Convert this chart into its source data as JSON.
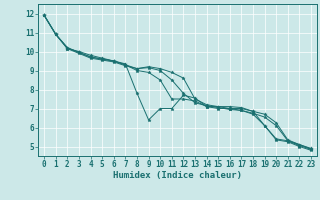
{
  "xlabel": "Humidex (Indice chaleur)",
  "bg_color": "#cce8e8",
  "grid_color": "#ffffff",
  "line_color": "#1a7070",
  "xlim": [
    -0.5,
    23.5
  ],
  "ylim": [
    4.5,
    12.5
  ],
  "yticks": [
    5,
    6,
    7,
    8,
    9,
    10,
    11,
    12
  ],
  "xticks": [
    0,
    1,
    2,
    3,
    4,
    5,
    6,
    7,
    8,
    9,
    10,
    11,
    12,
    13,
    14,
    15,
    16,
    17,
    18,
    19,
    20,
    21,
    22,
    23
  ],
  "series": [
    [
      11.9,
      10.9,
      10.15,
      10.0,
      9.8,
      9.65,
      9.5,
      9.35,
      7.8,
      6.4,
      7.0,
      7.0,
      7.7,
      7.55,
      7.1,
      7.1,
      7.1,
      7.05,
      6.85,
      6.1,
      5.35,
      5.25,
      5.0,
      4.8
    ],
    [
      11.9,
      10.9,
      10.2,
      9.95,
      9.7,
      9.6,
      9.5,
      9.3,
      9.0,
      8.9,
      8.5,
      7.5,
      7.5,
      7.4,
      7.1,
      7.0,
      7.0,
      6.9,
      6.7,
      6.1,
      5.4,
      5.3,
      5.05,
      4.85
    ],
    [
      11.9,
      10.9,
      10.15,
      9.9,
      9.65,
      9.55,
      9.45,
      9.25,
      9.1,
      9.15,
      9.0,
      8.5,
      7.8,
      7.3,
      7.15,
      7.05,
      6.95,
      6.9,
      6.75,
      6.55,
      6.1,
      5.3,
      5.1,
      4.9
    ],
    [
      11.9,
      10.9,
      10.2,
      9.95,
      9.72,
      9.6,
      9.5,
      9.3,
      9.1,
      9.2,
      9.1,
      8.9,
      8.6,
      7.5,
      7.2,
      7.1,
      7.0,
      7.0,
      6.85,
      6.7,
      6.25,
      5.35,
      5.1,
      4.87
    ]
  ],
  "tick_fontsize": 5.5,
  "xlabel_fontsize": 6.5,
  "linewidth": 0.7,
  "markersize": 2.5
}
